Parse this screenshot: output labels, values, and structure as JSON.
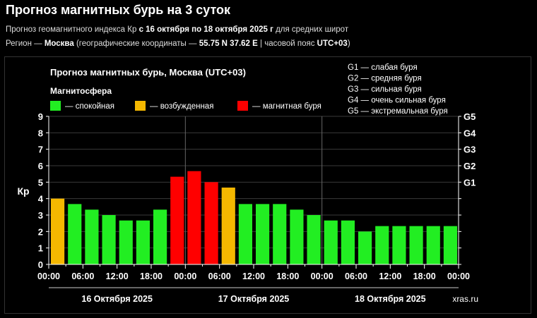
{
  "header": {
    "title": "Прогноз магнитных бурь на 3 суток",
    "line1_prefix": "Прогноз геомагнитного индекса Кр ",
    "line1_bold": "с 16 октября по 18 октября 2025 г",
    "line1_suffix": " для средних широт",
    "line2_prefix": "Регион — ",
    "line2_region": "Москва",
    "line2_mid": " (географические координаты — ",
    "line2_coords": "55.75 N 37.62 E",
    "line2_mid2": " | часовой пояс ",
    "line2_tz": "UTC+03",
    "line2_suffix": ")"
  },
  "chart_data": {
    "type": "bar",
    "title": "Прогноз магнитных бурь, Москва (UTC+03)",
    "ylabel": "Кр",
    "ylim": [
      0,
      9
    ],
    "yticks": [
      "0",
      "1",
      "2",
      "3",
      "4",
      "5",
      "6",
      "7",
      "8",
      "9"
    ],
    "right_axis_labels": [
      {
        "value": 5,
        "label": "G1"
      },
      {
        "value": 6,
        "label": "G2"
      },
      {
        "value": 7,
        "label": "G3"
      },
      {
        "value": 8,
        "label": "G4"
      },
      {
        "value": 9,
        "label": "G5"
      }
    ],
    "legend_title": "Магнитосфера",
    "legend": [
      {
        "label": "— спокойная",
        "color": "#22ee22"
      },
      {
        "label": "— возбужденная",
        "color": "#f5b800"
      },
      {
        "label": "— магнитная буря",
        "color": "#ff0000"
      }
    ],
    "g_scale": [
      "G1 — слабая буря",
      "G2 — средняя буря",
      "G3 — сильная буря",
      "G4 — очень сильная буря",
      "G5 — экстремальная буря"
    ],
    "x_tick_labels": [
      "00:00",
      "06:00",
      "12:00",
      "18:00",
      "00:00",
      "06:00",
      "12:00",
      "18:00",
      "00:00",
      "06:00",
      "12:00",
      "18:00",
      "00:00"
    ],
    "days": [
      "16 Октября 2025",
      "17 Октября 2025",
      "18 Октября 2025"
    ],
    "values": [
      4.0,
      3.67,
      3.33,
      3.0,
      2.67,
      2.67,
      3.33,
      5.33,
      5.67,
      5.0,
      4.67,
      3.67,
      3.67,
      3.67,
      3.33,
      3.0,
      2.67,
      2.67,
      2.0,
      2.33,
      2.33,
      2.33,
      2.33,
      2.33
    ],
    "levels": [
      "excited",
      "quiet",
      "quiet",
      "quiet",
      "quiet",
      "quiet",
      "quiet",
      "storm",
      "storm",
      "storm",
      "excited",
      "quiet",
      "quiet",
      "quiet",
      "quiet",
      "quiet",
      "quiet",
      "quiet",
      "quiet",
      "quiet",
      "quiet",
      "quiet",
      "quiet",
      "quiet"
    ],
    "level_colors": {
      "quiet": "#22ee22",
      "excited": "#f5b800",
      "storm": "#ff0000"
    },
    "grid": "horizontal",
    "watermark": "xras.ru"
  }
}
